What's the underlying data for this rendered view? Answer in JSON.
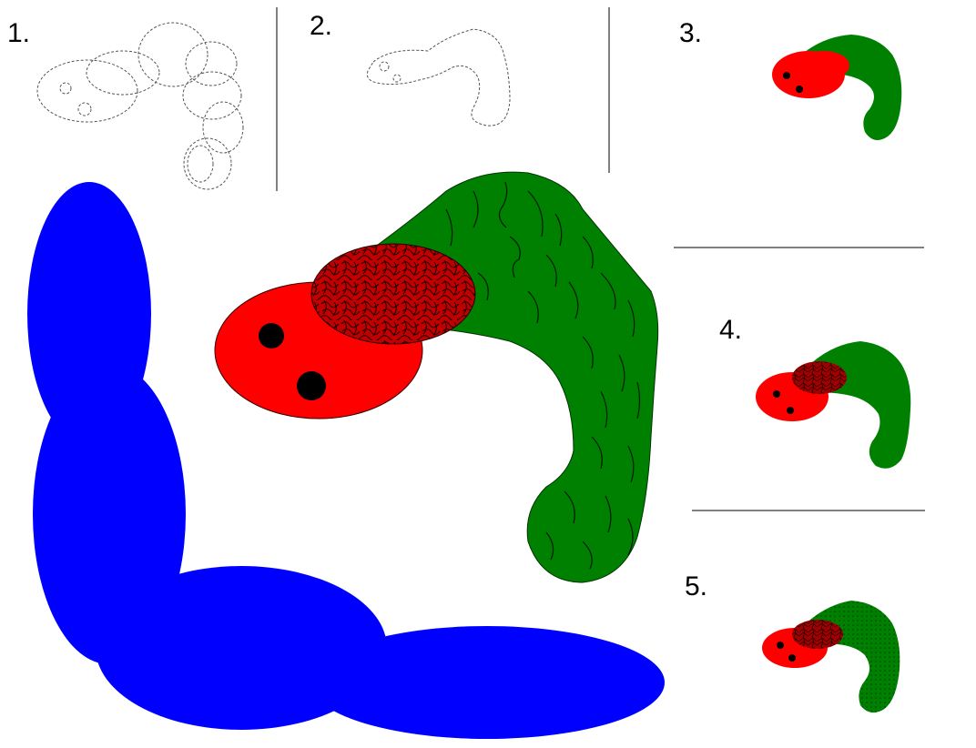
{
  "steps": [
    {
      "label": "1."
    },
    {
      "label": "2."
    },
    {
      "label": "3."
    },
    {
      "label": "4."
    },
    {
      "label": "5."
    }
  ],
  "colors": {
    "blue": "#0000ff",
    "green": "#008000",
    "red": "#ff0000",
    "dark_red": "#8b0000",
    "black": "#000000",
    "outline": "#555555"
  },
  "icons": [
    "worm-sketch-icon",
    "worm-drawing-icon"
  ]
}
